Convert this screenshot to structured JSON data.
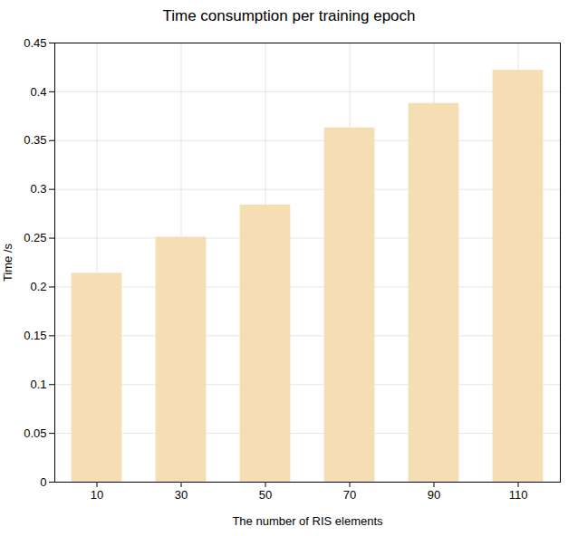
{
  "chart_data": {
    "type": "bar",
    "title": "Time consumption per training epoch",
    "xlabel": "The number of RIS elements",
    "ylabel": "Time /s",
    "categories": [
      10,
      30,
      50,
      70,
      90,
      110
    ],
    "values": [
      0.214,
      0.251,
      0.284,
      0.363,
      0.388,
      0.422
    ],
    "color": "#F5DEB3",
    "xlim": [
      0,
      120
    ],
    "xticks": [
      10,
      30,
      50,
      70,
      90,
      110
    ],
    "ylim": [
      0,
      0.45
    ],
    "yticks": [
      0,
      0.05,
      0.1,
      0.15,
      0.2,
      0.25,
      0.3,
      0.35,
      0.4,
      0.45
    ],
    "grid": true
  }
}
